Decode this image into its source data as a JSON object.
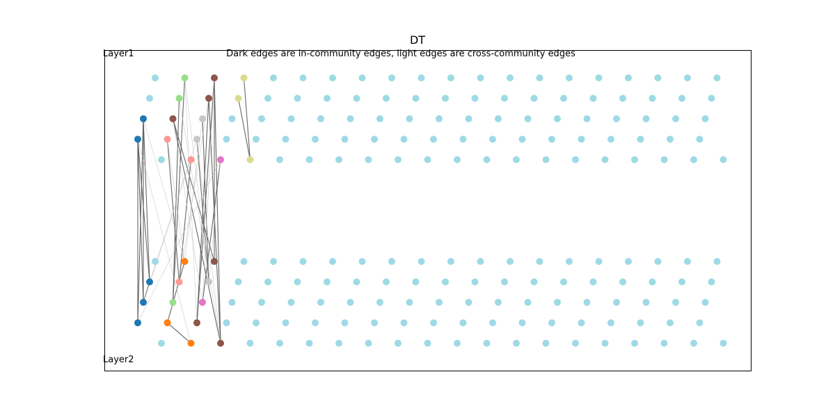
{
  "chart_data": {
    "type": "scatter",
    "title": "DT",
    "subtitle": "Dark edges are in-community edges, light edges are cross-community edges",
    "layer_labels": [
      "Layer1",
      "Layer2"
    ],
    "axes_visible": false,
    "grid": false,
    "default_node_color": "#9edae5",
    "edge_colors": {
      "in_community": "#555555",
      "cross_community": "#bbbbbb"
    },
    "layers": [
      {
        "name": "Layer1",
        "nodes_per_row": 20,
        "rows": 5,
        "colored_nodes": [
          {
            "row": 1,
            "col": 1,
            "color": "#98df8a"
          },
          {
            "row": 1,
            "col": 2,
            "color": "#8c564b"
          },
          {
            "row": 1,
            "col": 3,
            "color": "#dbdb8d"
          },
          {
            "row": 2,
            "col": 1,
            "color": "#98df8a"
          },
          {
            "row": 2,
            "col": 2,
            "color": "#8c564b"
          },
          {
            "row": 2,
            "col": 3,
            "color": "#dbdb8d"
          },
          {
            "row": 3,
            "col": 0,
            "color": "#1f77b4"
          },
          {
            "row": 3,
            "col": 1,
            "color": "#8c564b"
          },
          {
            "row": 3,
            "col": 2,
            "color": "#c7c7c7"
          },
          {
            "row": 4,
            "col": 0,
            "color": "#1f77b4"
          },
          {
            "row": 4,
            "col": 1,
            "color": "#ff9896"
          },
          {
            "row": 4,
            "col": 2,
            "color": "#c7c7c7"
          },
          {
            "row": 5,
            "col": 1,
            "color": "#ff9896"
          },
          {
            "row": 5,
            "col": 2,
            "color": "#e377c2"
          },
          {
            "row": 5,
            "col": 3,
            "color": "#dbdb8d"
          }
        ]
      },
      {
        "name": "Layer2",
        "nodes_per_row": 20,
        "rows": 5,
        "colored_nodes": [
          {
            "row": 1,
            "col": 1,
            "color": "#ff7f0e"
          },
          {
            "row": 1,
            "col": 2,
            "color": "#8c564b"
          },
          {
            "row": 2,
            "col": 0,
            "color": "#1f77b4"
          },
          {
            "row": 2,
            "col": 1,
            "color": "#ff9896"
          },
          {
            "row": 2,
            "col": 2,
            "color": "#c7c7c7"
          },
          {
            "row": 3,
            "col": 0,
            "color": "#1f77b4"
          },
          {
            "row": 3,
            "col": 1,
            "color": "#98df8a"
          },
          {
            "row": 3,
            "col": 2,
            "color": "#e377c2"
          },
          {
            "row": 4,
            "col": 0,
            "color": "#1f77b4"
          },
          {
            "row": 4,
            "col": 1,
            "color": "#ff7f0e"
          },
          {
            "row": 4,
            "col": 2,
            "color": "#8c564b"
          },
          {
            "row": 5,
            "col": 1,
            "color": "#ff7f0e"
          },
          {
            "row": 5,
            "col": 2,
            "color": "#8c564b"
          }
        ]
      }
    ],
    "edges": [
      {
        "from": [
          "Layer1",
          3,
          0
        ],
        "to": [
          "Layer2",
          2,
          0
        ],
        "type": "in_community"
      },
      {
        "from": [
          "Layer1",
          3,
          0
        ],
        "to": [
          "Layer2",
          4,
          0
        ],
        "type": "in_community"
      },
      {
        "from": [
          "Layer1",
          4,
          0
        ],
        "to": [
          "Layer2",
          3,
          0
        ],
        "type": "in_community"
      },
      {
        "from": [
          "Layer1",
          4,
          0
        ],
        "to": [
          "Layer2",
          4,
          0
        ],
        "type": "in_community"
      },
      {
        "from": [
          "Layer1",
          3,
          0
        ],
        "to": [
          "Layer2",
          3,
          0
        ],
        "type": "in_community"
      },
      {
        "from": [
          "Layer1",
          4,
          0
        ],
        "to": [
          "Layer2",
          2,
          0
        ],
        "type": "in_community"
      },
      {
        "from": [
          "Layer1",
          1,
          2
        ],
        "to": [
          "Layer2",
          1,
          2
        ],
        "type": "in_community"
      },
      {
        "from": [
          "Layer1",
          1,
          2
        ],
        "to": [
          "Layer2",
          5,
          2
        ],
        "type": "in_community"
      },
      {
        "from": [
          "Layer1",
          2,
          2
        ],
        "to": [
          "Layer2",
          4,
          2
        ],
        "type": "in_community"
      },
      {
        "from": [
          "Layer1",
          3,
          1
        ],
        "to": [
          "Layer2",
          5,
          2
        ],
        "type": "in_community"
      },
      {
        "from": [
          "Layer1",
          3,
          1
        ],
        "to": [
          "Layer2",
          1,
          2
        ],
        "type": "in_community"
      },
      {
        "from": [
          "Layer1",
          2,
          2
        ],
        "to": [
          "Layer2",
          5,
          2
        ],
        "type": "in_community"
      },
      {
        "from": [
          "Layer1",
          1,
          2
        ],
        "to": [
          "Layer2",
          4,
          2
        ],
        "type": "in_community"
      },
      {
        "from": [
          "Layer1",
          4,
          1
        ],
        "to": [
          "Layer2",
          2,
          1
        ],
        "type": "in_community"
      },
      {
        "from": [
          "Layer1",
          5,
          1
        ],
        "to": [
          "Layer2",
          2,
          1
        ],
        "type": "in_community"
      },
      {
        "from": [
          "Layer1",
          1,
          1
        ],
        "to": [
          "Layer2",
          3,
          1
        ],
        "type": "in_community"
      },
      {
        "from": [
          "Layer1",
          2,
          1
        ],
        "to": [
          "Layer2",
          3,
          1
        ],
        "type": "in_community"
      },
      {
        "from": [
          "Layer1",
          3,
          2
        ],
        "to": [
          "Layer2",
          2,
          2
        ],
        "type": "in_community"
      },
      {
        "from": [
          "Layer1",
          4,
          2
        ],
        "to": [
          "Layer2",
          2,
          2
        ],
        "type": "in_community"
      },
      {
        "from": [
          "Layer1",
          5,
          2
        ],
        "to": [
          "Layer2",
          3,
          2
        ],
        "type": "in_community"
      },
      {
        "from": [
          "Layer1",
          1,
          3
        ],
        "to": [
          "Layer1",
          5,
          3
        ],
        "type": "in_community"
      },
      {
        "from": [
          "Layer1",
          2,
          3
        ],
        "to": [
          "Layer1",
          5,
          3
        ],
        "type": "in_community"
      },
      {
        "from": [
          "Layer2",
          1,
          1
        ],
        "to": [
          "Layer2",
          4,
          1
        ],
        "type": "in_community"
      },
      {
        "from": [
          "Layer2",
          4,
          1
        ],
        "to": [
          "Layer2",
          5,
          1
        ],
        "type": "in_community"
      },
      {
        "from": [
          "Layer2",
          2,
          0
        ],
        "to": [
          "Layer2",
          3,
          0
        ],
        "type": "in_community"
      },
      {
        "from": [
          "Layer1",
          1,
          1
        ],
        "to": [
          "Layer2",
          2,
          2
        ],
        "type": "cross_community"
      },
      {
        "from": [
          "Layer1",
          1,
          1
        ],
        "to": [
          "Layer2",
          4,
          2
        ],
        "type": "cross_community"
      },
      {
        "from": [
          "Layer1",
          2,
          1
        ],
        "to": [
          "Layer2",
          5,
          2
        ],
        "type": "cross_community"
      },
      {
        "from": [
          "Layer1",
          4,
          1
        ],
        "to": [
          "Layer2",
          1,
          1
        ],
        "type": "cross_community"
      },
      {
        "from": [
          "Layer1",
          5,
          1
        ],
        "to": [
          "Layer2",
          3,
          0
        ],
        "type": "cross_community"
      },
      {
        "from": [
          "Layer1",
          4,
          2
        ],
        "to": [
          "Layer2",
          2,
          0
        ],
        "type": "cross_community"
      },
      {
        "from": [
          "Layer1",
          3,
          2
        ],
        "to": [
          "Layer2",
          1,
          1
        ],
        "type": "cross_community"
      },
      {
        "from": [
          "Layer1",
          5,
          2
        ],
        "to": [
          "Layer2",
          4,
          0
        ],
        "type": "cross_community"
      },
      {
        "from": [
          "Layer1",
          1,
          2
        ],
        "to": [
          "Layer2",
          3,
          2
        ],
        "type": "cross_community"
      },
      {
        "from": [
          "Layer1",
          2,
          2
        ],
        "to": [
          "Layer2",
          2,
          1
        ],
        "type": "cross_community"
      },
      {
        "from": [
          "Layer1",
          3,
          0
        ],
        "to": [
          "Layer2",
          1,
          1
        ],
        "type": "cross_community"
      },
      {
        "from": [
          "Layer1",
          4,
          0
        ],
        "to": [
          "Layer2",
          5,
          1
        ],
        "type": "cross_community"
      },
      {
        "from": [
          "Layer1",
          3,
          1
        ],
        "to": [
          "Layer2",
          3,
          2
        ],
        "type": "cross_community"
      },
      {
        "from": [
          "Layer1",
          4,
          2
        ],
        "to": [
          "Layer2",
          5,
          2
        ],
        "type": "cross_community"
      },
      {
        "from": [
          "Layer1",
          5,
          2
        ],
        "to": [
          "Layer2",
          2,
          2
        ],
        "type": "cross_community"
      }
    ]
  }
}
